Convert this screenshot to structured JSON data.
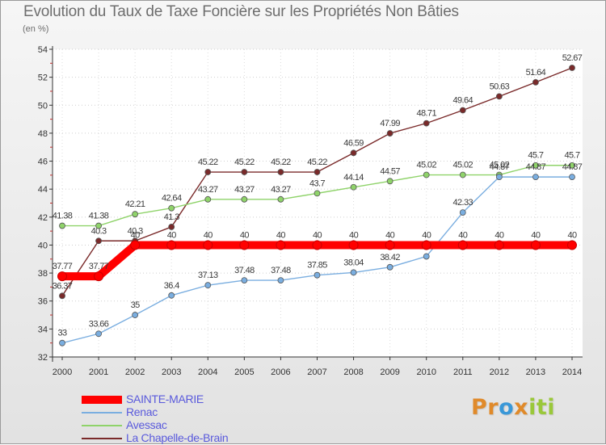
{
  "title": "Evolution du Taux de Taxe Foncière sur les Propriétés Non Bâties",
  "subtitle": "(en %)",
  "brand": {
    "parts": [
      "Pr",
      "o",
      "x",
      "iti"
    ],
    "colors": [
      "#e08a2a",
      "#3a98d8",
      "#e08a2a",
      "#9ac83a"
    ]
  },
  "chart_data": {
    "type": "line",
    "title": "Evolution du Taux de Taxe Foncière sur les Propriétés Non Bâties",
    "ylabel": "(en %)",
    "xlabel": "",
    "ylim": [
      32,
      54
    ],
    "yticks": [
      32,
      34,
      36,
      38,
      40,
      42,
      44,
      46,
      48,
      50,
      52,
      54
    ],
    "x": [
      "2000",
      "2001",
      "2002",
      "2003",
      "2004",
      "2005",
      "2006",
      "2007",
      "2008",
      "2009",
      "2010",
      "2011",
      "2012",
      "2013",
      "2014"
    ],
    "legend": "bottom-left",
    "series": [
      {
        "name": "La Chapelle-de-Brain",
        "color": "#7a2a2a",
        "values": [
          36.37,
          40.3,
          40.3,
          41.3,
          45.22,
          45.22,
          45.22,
          45.22,
          46.59,
          47.99,
          48.71,
          49.64,
          50.63,
          51.64,
          52.67
        ],
        "labels": [
          "36.37",
          "40.3",
          "40.3",
          "41.3",
          "45.22",
          "45.22",
          "45.22",
          "45.22",
          "46.59",
          "47.99",
          "48.71",
          "49.64",
          "50.63",
          "51.64",
          "52.67"
        ]
      },
      {
        "name": "Avessac",
        "color": "#8fd36a",
        "values": [
          41.38,
          41.38,
          42.21,
          42.64,
          43.27,
          43.27,
          43.27,
          43.7,
          44.14,
          44.57,
          45.02,
          45.02,
          45.02,
          45.7,
          45.7
        ],
        "labels": [
          "41.38",
          "41.38",
          "42.21",
          "42.64",
          "43.27",
          "43.27",
          "43.27",
          "43.7",
          "44.14",
          "44.57",
          "45.02",
          "45.02",
          "45.02",
          "45.7",
          "45.7"
        ]
      },
      {
        "name": "Renac",
        "color": "#7aaee0",
        "values": [
          33,
          33.66,
          35,
          36.4,
          37.13,
          37.48,
          37.48,
          37.85,
          38.04,
          38.42,
          39.19,
          42.33,
          44.87,
          44.87,
          44.87
        ],
        "labels": [
          "33",
          "33.66",
          "35",
          "36.4",
          "37.13",
          "37.48",
          "37.48",
          "37.85",
          "38.04",
          "38.42",
          "39.19",
          "42.33",
          "44.87",
          "44.87",
          "44.87"
        ]
      },
      {
        "name": "SAINTE-MARIE",
        "color": "#ff0000",
        "values": [
          37.77,
          37.77,
          40,
          40,
          40,
          40,
          40,
          40,
          40,
          40,
          40,
          40,
          40,
          40,
          40
        ],
        "labels": [
          "37.77",
          "37.77",
          "40",
          "40",
          "40",
          "40",
          "40",
          "40",
          "40",
          "40",
          "40",
          "40",
          "40",
          "40",
          "40"
        ]
      }
    ],
    "legend_order": [
      "SAINTE-MARIE",
      "Renac",
      "Avessac",
      "La Chapelle-de-Brain"
    ]
  }
}
